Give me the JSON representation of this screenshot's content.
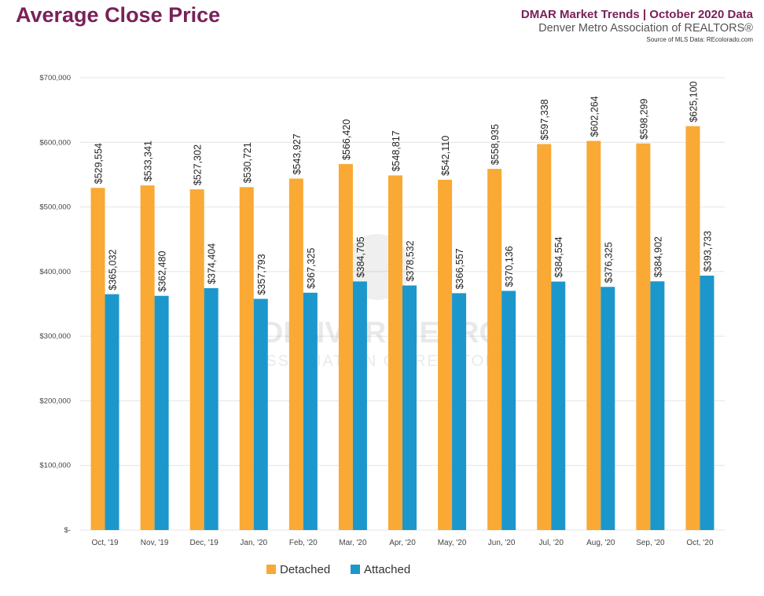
{
  "header": {
    "title": "Average Close Price",
    "line1": "DMAR Market Trends | October 2020 Data",
    "line2": "Denver Metro Association of REALTORS®",
    "line3": "Source of MLS Data: REcolorado.com"
  },
  "watermark": {
    "line1": "DENVER METRO",
    "line2": "ASSOCIATION OF REALTORS"
  },
  "colors": {
    "detached": "#f9a934",
    "attached": "#1c97cc",
    "grid": "#e4e4e4",
    "title": "#7a2158"
  },
  "chart_data": {
    "type": "bar",
    "categories": [
      "Oct, '19",
      "Nov, '19",
      "Dec, '19",
      "Jan, '20",
      "Feb, '20",
      "Mar, '20",
      "Apr, '20",
      "May, '20",
      "Jun, '20",
      "Jul, '20",
      "Aug, '20",
      "Sep, '20",
      "Oct, '20"
    ],
    "series": [
      {
        "name": "Detached",
        "values": [
          529554,
          533341,
          527302,
          530721,
          543927,
          566420,
          548817,
          542110,
          558935,
          597338,
          602264,
          598299,
          625100
        ],
        "labels": [
          "$529,554",
          "$533,341",
          "$527,302",
          "$530,721",
          "$543,927",
          "$566,420",
          "$548,817",
          "$542,110",
          "$558,935",
          "$597,338",
          "$602,264",
          "$598,299",
          "$625,100"
        ]
      },
      {
        "name": "Attached",
        "values": [
          365032,
          362480,
          374404,
          357793,
          367325,
          384705,
          378532,
          366557,
          370136,
          384554,
          376325,
          384902,
          393733
        ],
        "labels": [
          "$365,032",
          "$362,480",
          "$374,404",
          "$357,793",
          "$367,325",
          "$384,705",
          "$378,532",
          "$366,557",
          "$370,136",
          "$384,554",
          "$376,325",
          "$384,902",
          "$393,733"
        ]
      }
    ],
    "ylim": [
      0,
      700000
    ],
    "yticks": [
      0,
      100000,
      200000,
      300000,
      400000,
      500000,
      600000,
      700000
    ],
    "ytick_labels": [
      "$-",
      "$100,000",
      "$200,000",
      "$300,000",
      "$400,000",
      "$500,000",
      "$600,000",
      "$700,000"
    ],
    "grid": true,
    "legend_position": "bottom"
  }
}
